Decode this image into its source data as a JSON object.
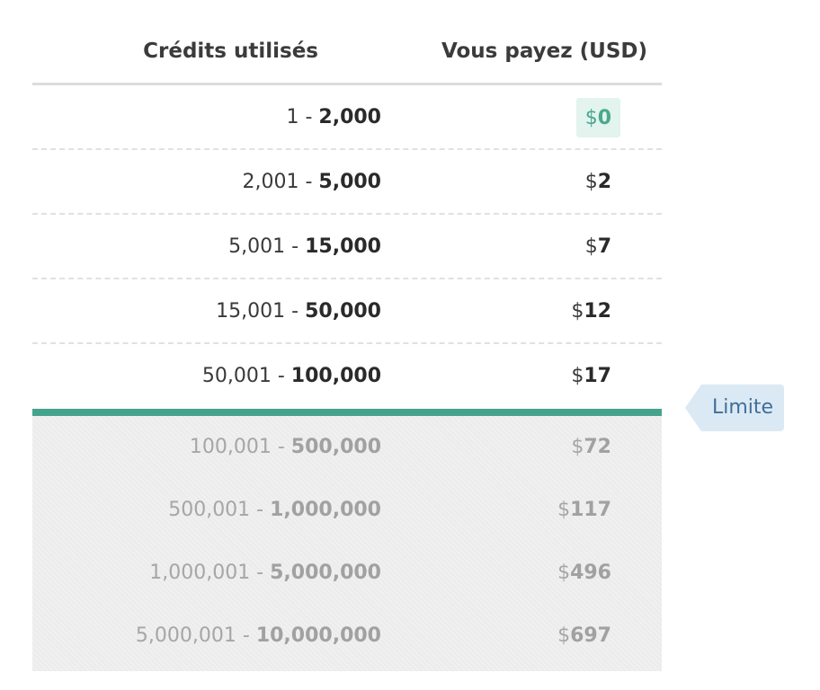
{
  "header": {
    "credits_label": "Crédits utilisés",
    "pay_label": "Vous payez (USD)"
  },
  "included_rows": [
    {
      "range_start": "1",
      "separator": " - ",
      "range_end": "2,000",
      "currency": "$",
      "amount": "0"
    },
    {
      "range_start": "2,001",
      "separator": " - ",
      "range_end": "5,000",
      "currency": "$",
      "amount": "2"
    },
    {
      "range_start": "5,001",
      "separator": " - ",
      "range_end": "15,000",
      "currency": "$",
      "amount": "7"
    },
    {
      "range_start": "15,001",
      "separator": " - ",
      "range_end": "50,000",
      "currency": "$",
      "amount": "12"
    },
    {
      "range_start": "50,001",
      "separator": " - ",
      "range_end": "100,000",
      "currency": "$",
      "amount": "17"
    }
  ],
  "over_limit_rows": [
    {
      "range_start": "100,001",
      "separator": " - ",
      "range_end": "500,000",
      "currency": "$",
      "amount": "72"
    },
    {
      "range_start": "500,001",
      "separator": " - ",
      "range_end": "1,000,000",
      "currency": "$",
      "amount": "117"
    },
    {
      "range_start": "1,000,001",
      "separator": " - ",
      "range_end": "5,000,000",
      "currency": "$",
      "amount": "496"
    },
    {
      "range_start": "5,000,001",
      "separator": " - ",
      "range_end": "10,000,000",
      "currency": "$",
      "amount": "697"
    }
  ],
  "limit_tag": {
    "label": "Limite"
  },
  "colors": {
    "accent_green": "#45a38d",
    "free_badge_bg": "#e3f3ee",
    "limit_tag_bg": "#dbe9f4",
    "limit_tag_text": "#3f6f99"
  }
}
